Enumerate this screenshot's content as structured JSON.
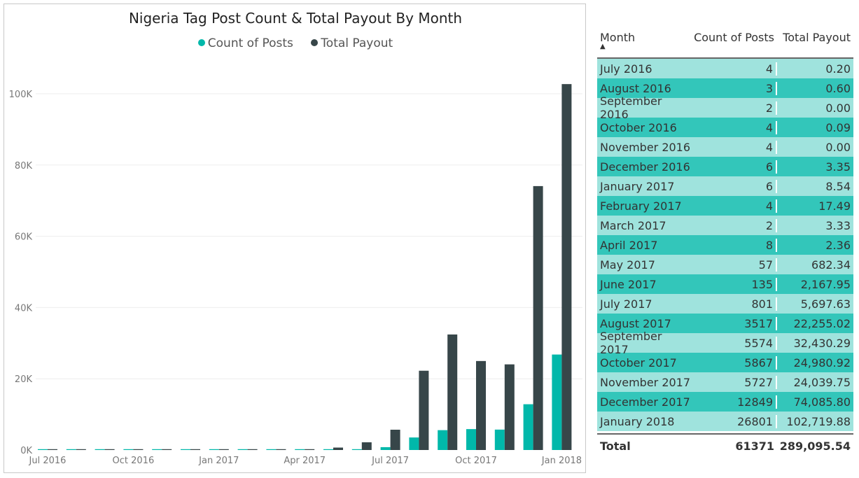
{
  "chart_data": {
    "type": "bar",
    "title": "Nigeria Tag Post Count & Total Payout By Month",
    "legend": [
      {
        "name": "Count of Posts",
        "color": "#01B8AA"
      },
      {
        "name": "Total Payout",
        "color": "#374649"
      }
    ],
    "legend_position": "top-center",
    "categories": [
      "Jul 2016",
      "Aug 2016",
      "Sep 2016",
      "Oct 2016",
      "Nov 2016",
      "Dec 2016",
      "Jan 2017",
      "Feb 2017",
      "Mar 2017",
      "Apr 2017",
      "May 2017",
      "Jun 2017",
      "Jul 2017",
      "Aug 2017",
      "Sep 2017",
      "Oct 2017",
      "Nov 2017",
      "Dec 2017",
      "Jan 2018"
    ],
    "x_tick_labels": [
      "Jul 2016",
      "Oct 2016",
      "Jan 2017",
      "Apr 2017",
      "Jul 2017",
      "Oct 2017",
      "Jan 2018"
    ],
    "y_tick_labels": [
      "0K",
      "20K",
      "40K",
      "60K",
      "80K",
      "100K"
    ],
    "ylim": [
      0,
      100000
    ],
    "grid": true,
    "series": [
      {
        "name": "Count of Posts",
        "values": [
          4,
          3,
          2,
          4,
          4,
          6,
          6,
          4,
          2,
          8,
          57,
          135,
          801,
          3517,
          5574,
          5867,
          5727,
          12849,
          26801
        ]
      },
      {
        "name": "Total Payout",
        "values": [
          0.2,
          0.6,
          0,
          0.09,
          0,
          3.35,
          8.54,
          17.49,
          3.33,
          2.36,
          682.34,
          2167.95,
          5697.63,
          22255.02,
          32430.29,
          24980.92,
          24039.75,
          74085.8,
          102719.88
        ]
      }
    ]
  },
  "table": {
    "headers": [
      "Month",
      "Count of Posts",
      "Total Payout"
    ],
    "rows": [
      [
        "July 2016",
        "4",
        "0.20"
      ],
      [
        "August 2016",
        "3",
        "0.60"
      ],
      [
        "September 2016",
        "2",
        "0.00"
      ],
      [
        "October 2016",
        "4",
        "0.09"
      ],
      [
        "November 2016",
        "4",
        "0.00"
      ],
      [
        "December 2016",
        "6",
        "3.35"
      ],
      [
        "January 2017",
        "6",
        "8.54"
      ],
      [
        "February 2017",
        "4",
        "17.49"
      ],
      [
        "March 2017",
        "2",
        "3.33"
      ],
      [
        "April 2017",
        "8",
        "2.36"
      ],
      [
        "May 2017",
        "57",
        "682.34"
      ],
      [
        "June 2017",
        "135",
        "2,167.95"
      ],
      [
        "July 2017",
        "801",
        "5,697.63"
      ],
      [
        "August 2017",
        "3517",
        "22,255.02"
      ],
      [
        "September 2017",
        "5574",
        "32,430.29"
      ],
      [
        "October 2017",
        "5867",
        "24,980.92"
      ],
      [
        "November 2017",
        "5727",
        "24,039.75"
      ],
      [
        "December 2017",
        "12849",
        "74,085.80"
      ],
      [
        "January 2018",
        "26801",
        "102,719.88"
      ]
    ],
    "total": [
      "Total",
      "61371",
      "289,095.54"
    ]
  }
}
